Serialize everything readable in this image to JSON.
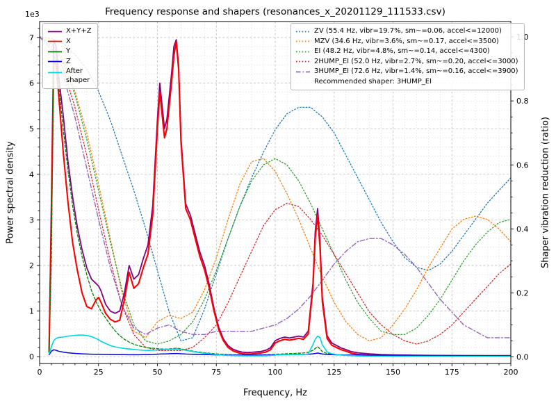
{
  "title": "Frequency response and shapers (resonances_x_20201129_111533.csv)",
  "legend_psd": {
    "items": [
      {
        "label": "X+Y+Z",
        "color": "#800080",
        "style": "solid"
      },
      {
        "label": "X",
        "color": "#ff0000",
        "style": "solid"
      },
      {
        "label": "Y",
        "color": "#008000",
        "style": "solid"
      },
      {
        "label": "Z",
        "color": "#0000dd",
        "style": "solid"
      },
      {
        "label": "After\nshaper",
        "color": "#00d4e0",
        "style": "solid"
      }
    ]
  },
  "legend_shapers": {
    "items": [
      {
        "label": "ZV (55.4 Hz, vibr=19.7%, sm~=0.06, accel<=12000)",
        "color": "#1f77b4",
        "style": "dotted"
      },
      {
        "label": "MZV (34.6 Hz, vibr=3.6%, sm~=0.17, accel<=3500)",
        "color": "#ff7f0e",
        "style": "dotted"
      },
      {
        "label": "EI (48.2 Hz, vibr=4.8%, sm~=0.14, accel<=4300)",
        "color": "#2ca02c",
        "style": "dotted"
      },
      {
        "label": "2HUMP_EI (52.0 Hz, vibr=2.7%, sm~=0.20, accel<=3000)",
        "color": "#d62728",
        "style": "dotted"
      },
      {
        "label": "3HUMP_EI (72.6 Hz, vibr=1.4%, sm~=0.16, accel<=3900)",
        "color": "#9467bd",
        "style": "dashdot"
      }
    ],
    "note": "Recommended shaper: 3HUMP_EI"
  },
  "chart_data": {
    "type": "line",
    "title": "Frequency response and shapers (resonances_x_20201129_111533.csv)",
    "xlabel": "Frequency, Hz",
    "ylabel_left": "Power spectral density",
    "ylabel_right": "Shaper vibration reduction (ratio)",
    "y_left_offset_text": "1e3",
    "xlim": [
      0,
      200
    ],
    "ylim_left": [
      -150,
      7350
    ],
    "ylim_right": [
      -0.0205,
      1.048
    ],
    "x_ticks": [
      0,
      25,
      50,
      75,
      100,
      125,
      150,
      175,
      200
    ],
    "x_minor_step": 5,
    "y_left_ticks": [
      0,
      1000,
      2000,
      3000,
      4000,
      5000,
      6000,
      7000
    ],
    "y_left_tick_labels": [
      "0",
      "1",
      "2",
      "3",
      "4",
      "5",
      "6",
      "7"
    ],
    "y_left_minor_step": 200,
    "y_right_ticks": [
      0,
      0.2,
      0.4,
      0.6,
      0.8,
      1.0
    ],
    "y_right_tick_labels": [
      "0.0",
      "0.2",
      "0.4",
      "0.6",
      "0.8",
      "1.0"
    ],
    "grid": true,
    "legend_positions": {
      "psd": "upper left",
      "shapers": "upper right"
    },
    "psd_x": [
      4,
      5,
      6,
      7,
      8,
      10,
      12,
      14,
      16,
      18,
      20,
      22,
      24,
      25,
      26,
      28,
      30,
      32,
      34,
      36,
      38,
      40,
      42,
      44,
      46,
      48,
      50,
      51,
      52,
      53,
      54,
      56,
      57,
      58,
      59,
      60,
      62,
      64,
      66,
      68,
      70,
      72,
      74,
      76,
      78,
      80,
      82,
      84,
      86,
      88,
      90,
      92,
      94,
      96,
      98,
      100,
      102,
      104,
      106,
      108,
      110,
      112,
      114,
      116,
      117,
      118,
      119,
      120,
      122,
      124,
      126,
      128,
      130,
      132,
      135,
      140,
      145,
      150,
      160,
      170,
      180,
      190,
      200
    ],
    "psd_series": [
      {
        "name": "X+Y+Z",
        "color": "#800080",
        "style": "solid",
        "width": 1.8,
        "values": [
          150,
          3500,
          6950,
          6800,
          6200,
          5300,
          4300,
          3500,
          2850,
          2350,
          1950,
          1700,
          1600,
          1550,
          1450,
          1150,
          1000,
          950,
          1000,
          1400,
          2000,
          1700,
          1800,
          2150,
          2450,
          3300,
          5200,
          6000,
          5500,
          5000,
          5200,
          6200,
          6800,
          6950,
          6400,
          4800,
          3350,
          3100,
          2700,
          2300,
          2000,
          1580,
          1060,
          650,
          390,
          240,
          165,
          125,
          100,
          90,
          95,
          105,
          115,
          140,
          195,
          350,
          400,
          430,
          410,
          430,
          450,
          430,
          560,
          1600,
          2750,
          3250,
          2550,
          1300,
          460,
          300,
          245,
          190,
          155,
          115,
          85,
          60,
          45,
          38,
          30,
          26,
          24,
          23,
          22
        ]
      },
      {
        "name": "X",
        "color": "#ff0000",
        "style": "solid",
        "width": 2.1,
        "values": [
          100,
          3000,
          6500,
          6400,
          5800,
          4500,
          3400,
          2500,
          1900,
          1400,
          1100,
          1050,
          1250,
          1300,
          1200,
          950,
          820,
          760,
          800,
          1250,
          1850,
          1500,
          1600,
          1950,
          2250,
          3100,
          5000,
          5800,
          5300,
          4800,
          5000,
          6000,
          6600,
          6900,
          6300,
          4700,
          3250,
          3000,
          2600,
          2200,
          1900,
          1500,
          1000,
          600,
          350,
          200,
          130,
          90,
          65,
          55,
          60,
          70,
          80,
          100,
          150,
          300,
          350,
          380,
          360,
          380,
          400,
          380,
          500,
          1500,
          2600,
          3100,
          2400,
          1200,
          400,
          250,
          200,
          150,
          120,
          80,
          50,
          30,
          20,
          15,
          12,
          10,
          10,
          10,
          10
        ]
      },
      {
        "name": "Y",
        "color": "#008000",
        "style": "dashed",
        "width": 1.3,
        "values": [
          80,
          2200,
          6600,
          6500,
          6000,
          5000,
          4100,
          3300,
          2700,
          2200,
          1800,
          1450,
          1200,
          1100,
          1000,
          850,
          700,
          570,
          460,
          380,
          320,
          270,
          240,
          215,
          195,
          185,
          175,
          170,
          168,
          165,
          165,
          175,
          180,
          185,
          180,
          170,
          150,
          130,
          112,
          98,
          86,
          76,
          66,
          58,
          52,
          46,
          42,
          40,
          38,
          36,
          36,
          36,
          38,
          42,
          46,
          52,
          58,
          62,
          66,
          70,
          76,
          82,
          95,
          140,
          180,
          220,
          170,
          110,
          70,
          56,
          48,
          42,
          38,
          34,
          30,
          26,
          22,
          20,
          16,
          14,
          12,
          11,
          10
        ]
      },
      {
        "name": "Z",
        "color": "#0000dd",
        "style": "solid",
        "width": 1.5,
        "values": [
          40,
          120,
          150,
          140,
          120,
          100,
          85,
          75,
          68,
          62,
          58,
          55,
          52,
          51,
          50,
          48,
          46,
          45,
          44,
          43,
          42,
          42,
          42,
          43,
          45,
          48,
          55,
          58,
          60,
          60,
          62,
          66,
          68,
          70,
          68,
          64,
          58,
          54,
          50,
          47,
          45,
          43,
          41,
          39,
          37,
          36,
          35,
          34,
          33,
          33,
          33,
          33,
          34,
          35,
          36,
          38,
          40,
          42,
          43,
          45,
          47,
          48,
          52,
          62,
          70,
          78,
          70,
          58,
          48,
          44,
          41,
          39,
          37,
          36,
          34,
          32,
          30,
          29,
          27,
          25,
          24,
          23,
          22
        ]
      },
      {
        "name": "After shaper",
        "color": "#00d4e0",
        "style": "solid",
        "width": 1.6,
        "values": [
          60,
          220,
          350,
          400,
          420,
          430,
          450,
          460,
          470,
          475,
          465,
          440,
          395,
          370,
          340,
          290,
          245,
          215,
          195,
          180,
          168,
          158,
          148,
          140,
          136,
          140,
          148,
          152,
          154,
          156,
          158,
          164,
          166,
          168,
          164,
          156,
          140,
          122,
          104,
          88,
          74,
          62,
          52,
          42,
          34,
          28,
          24,
          21,
          19,
          18,
          18,
          18,
          19,
          21,
          25,
          35,
          42,
          46,
          44,
          46,
          48,
          46,
          60,
          260,
          380,
          450,
          420,
          260,
          105,
          62,
          45,
          35,
          28,
          22,
          16,
          12,
          10,
          9,
          8,
          8,
          8,
          8,
          8
        ]
      }
    ],
    "shaper_x": [
      0,
      5,
      10,
      15,
      20,
      25,
      30,
      35,
      40,
      45,
      50,
      55,
      60,
      65,
      70,
      75,
      80,
      85,
      90,
      95,
      100,
      105,
      110,
      115,
      120,
      125,
      130,
      135,
      140,
      145,
      150,
      155,
      160,
      165,
      170,
      175,
      180,
      185,
      190,
      195,
      200
    ],
    "shaper_series": [
      {
        "name": "ZV",
        "color": "#1f77b4",
        "style": "dotted",
        "width": 1.3,
        "values": [
          1.0,
          0.995,
          0.98,
          0.945,
          0.9,
          0.83,
          0.74,
          0.63,
          0.52,
          0.4,
          0.27,
          0.14,
          0.05,
          0.06,
          0.15,
          0.26,
          0.37,
          0.47,
          0.56,
          0.64,
          0.71,
          0.76,
          0.78,
          0.78,
          0.75,
          0.7,
          0.63,
          0.56,
          0.49,
          0.42,
          0.36,
          0.31,
          0.28,
          0.27,
          0.29,
          0.33,
          0.38,
          0.43,
          0.48,
          0.52,
          0.56
        ]
      },
      {
        "name": "MZV",
        "color": "#ff7f0e",
        "style": "dotted",
        "width": 1.3,
        "values": [
          1.0,
          0.98,
          0.93,
          0.83,
          0.7,
          0.54,
          0.37,
          0.2,
          0.08,
          0.06,
          0.11,
          0.13,
          0.12,
          0.14,
          0.21,
          0.31,
          0.43,
          0.54,
          0.61,
          0.62,
          0.58,
          0.51,
          0.43,
          0.34,
          0.25,
          0.17,
          0.11,
          0.07,
          0.05,
          0.06,
          0.1,
          0.15,
          0.21,
          0.28,
          0.34,
          0.4,
          0.43,
          0.44,
          0.43,
          0.4,
          0.36
        ]
      },
      {
        "name": "EI",
        "color": "#2ca02c",
        "style": "dotted",
        "width": 1.3,
        "values": [
          1.0,
          0.98,
          0.92,
          0.82,
          0.68,
          0.52,
          0.36,
          0.21,
          0.1,
          0.05,
          0.04,
          0.05,
          0.07,
          0.11,
          0.18,
          0.27,
          0.37,
          0.47,
          0.55,
          0.6,
          0.62,
          0.6,
          0.55,
          0.48,
          0.4,
          0.32,
          0.24,
          0.17,
          0.12,
          0.08,
          0.07,
          0.07,
          0.09,
          0.13,
          0.18,
          0.24,
          0.3,
          0.35,
          0.39,
          0.42,
          0.43
        ]
      },
      {
        "name": "2HUMP_EI",
        "color": "#d62728",
        "style": "dotted",
        "width": 1.3,
        "values": [
          1.0,
          0.97,
          0.9,
          0.78,
          0.63,
          0.46,
          0.3,
          0.16,
          0.07,
          0.03,
          0.02,
          0.02,
          0.02,
          0.03,
          0.06,
          0.1,
          0.17,
          0.25,
          0.33,
          0.41,
          0.46,
          0.48,
          0.47,
          0.43,
          0.38,
          0.32,
          0.26,
          0.2,
          0.14,
          0.1,
          0.07,
          0.05,
          0.04,
          0.05,
          0.07,
          0.1,
          0.14,
          0.18,
          0.22,
          0.26,
          0.29
        ]
      },
      {
        "name": "3HUMP_EI",
        "color": "#9467bd",
        "style": "dashdot",
        "width": 1.4,
        "values": [
          1.0,
          0.96,
          0.88,
          0.75,
          0.59,
          0.43,
          0.28,
          0.16,
          0.09,
          0.07,
          0.09,
          0.1,
          0.08,
          0.07,
          0.07,
          0.08,
          0.08,
          0.08,
          0.08,
          0.09,
          0.1,
          0.12,
          0.15,
          0.19,
          0.24,
          0.29,
          0.33,
          0.36,
          0.37,
          0.37,
          0.35,
          0.32,
          0.28,
          0.23,
          0.18,
          0.14,
          0.1,
          0.08,
          0.06,
          0.06,
          0.06
        ]
      }
    ]
  }
}
